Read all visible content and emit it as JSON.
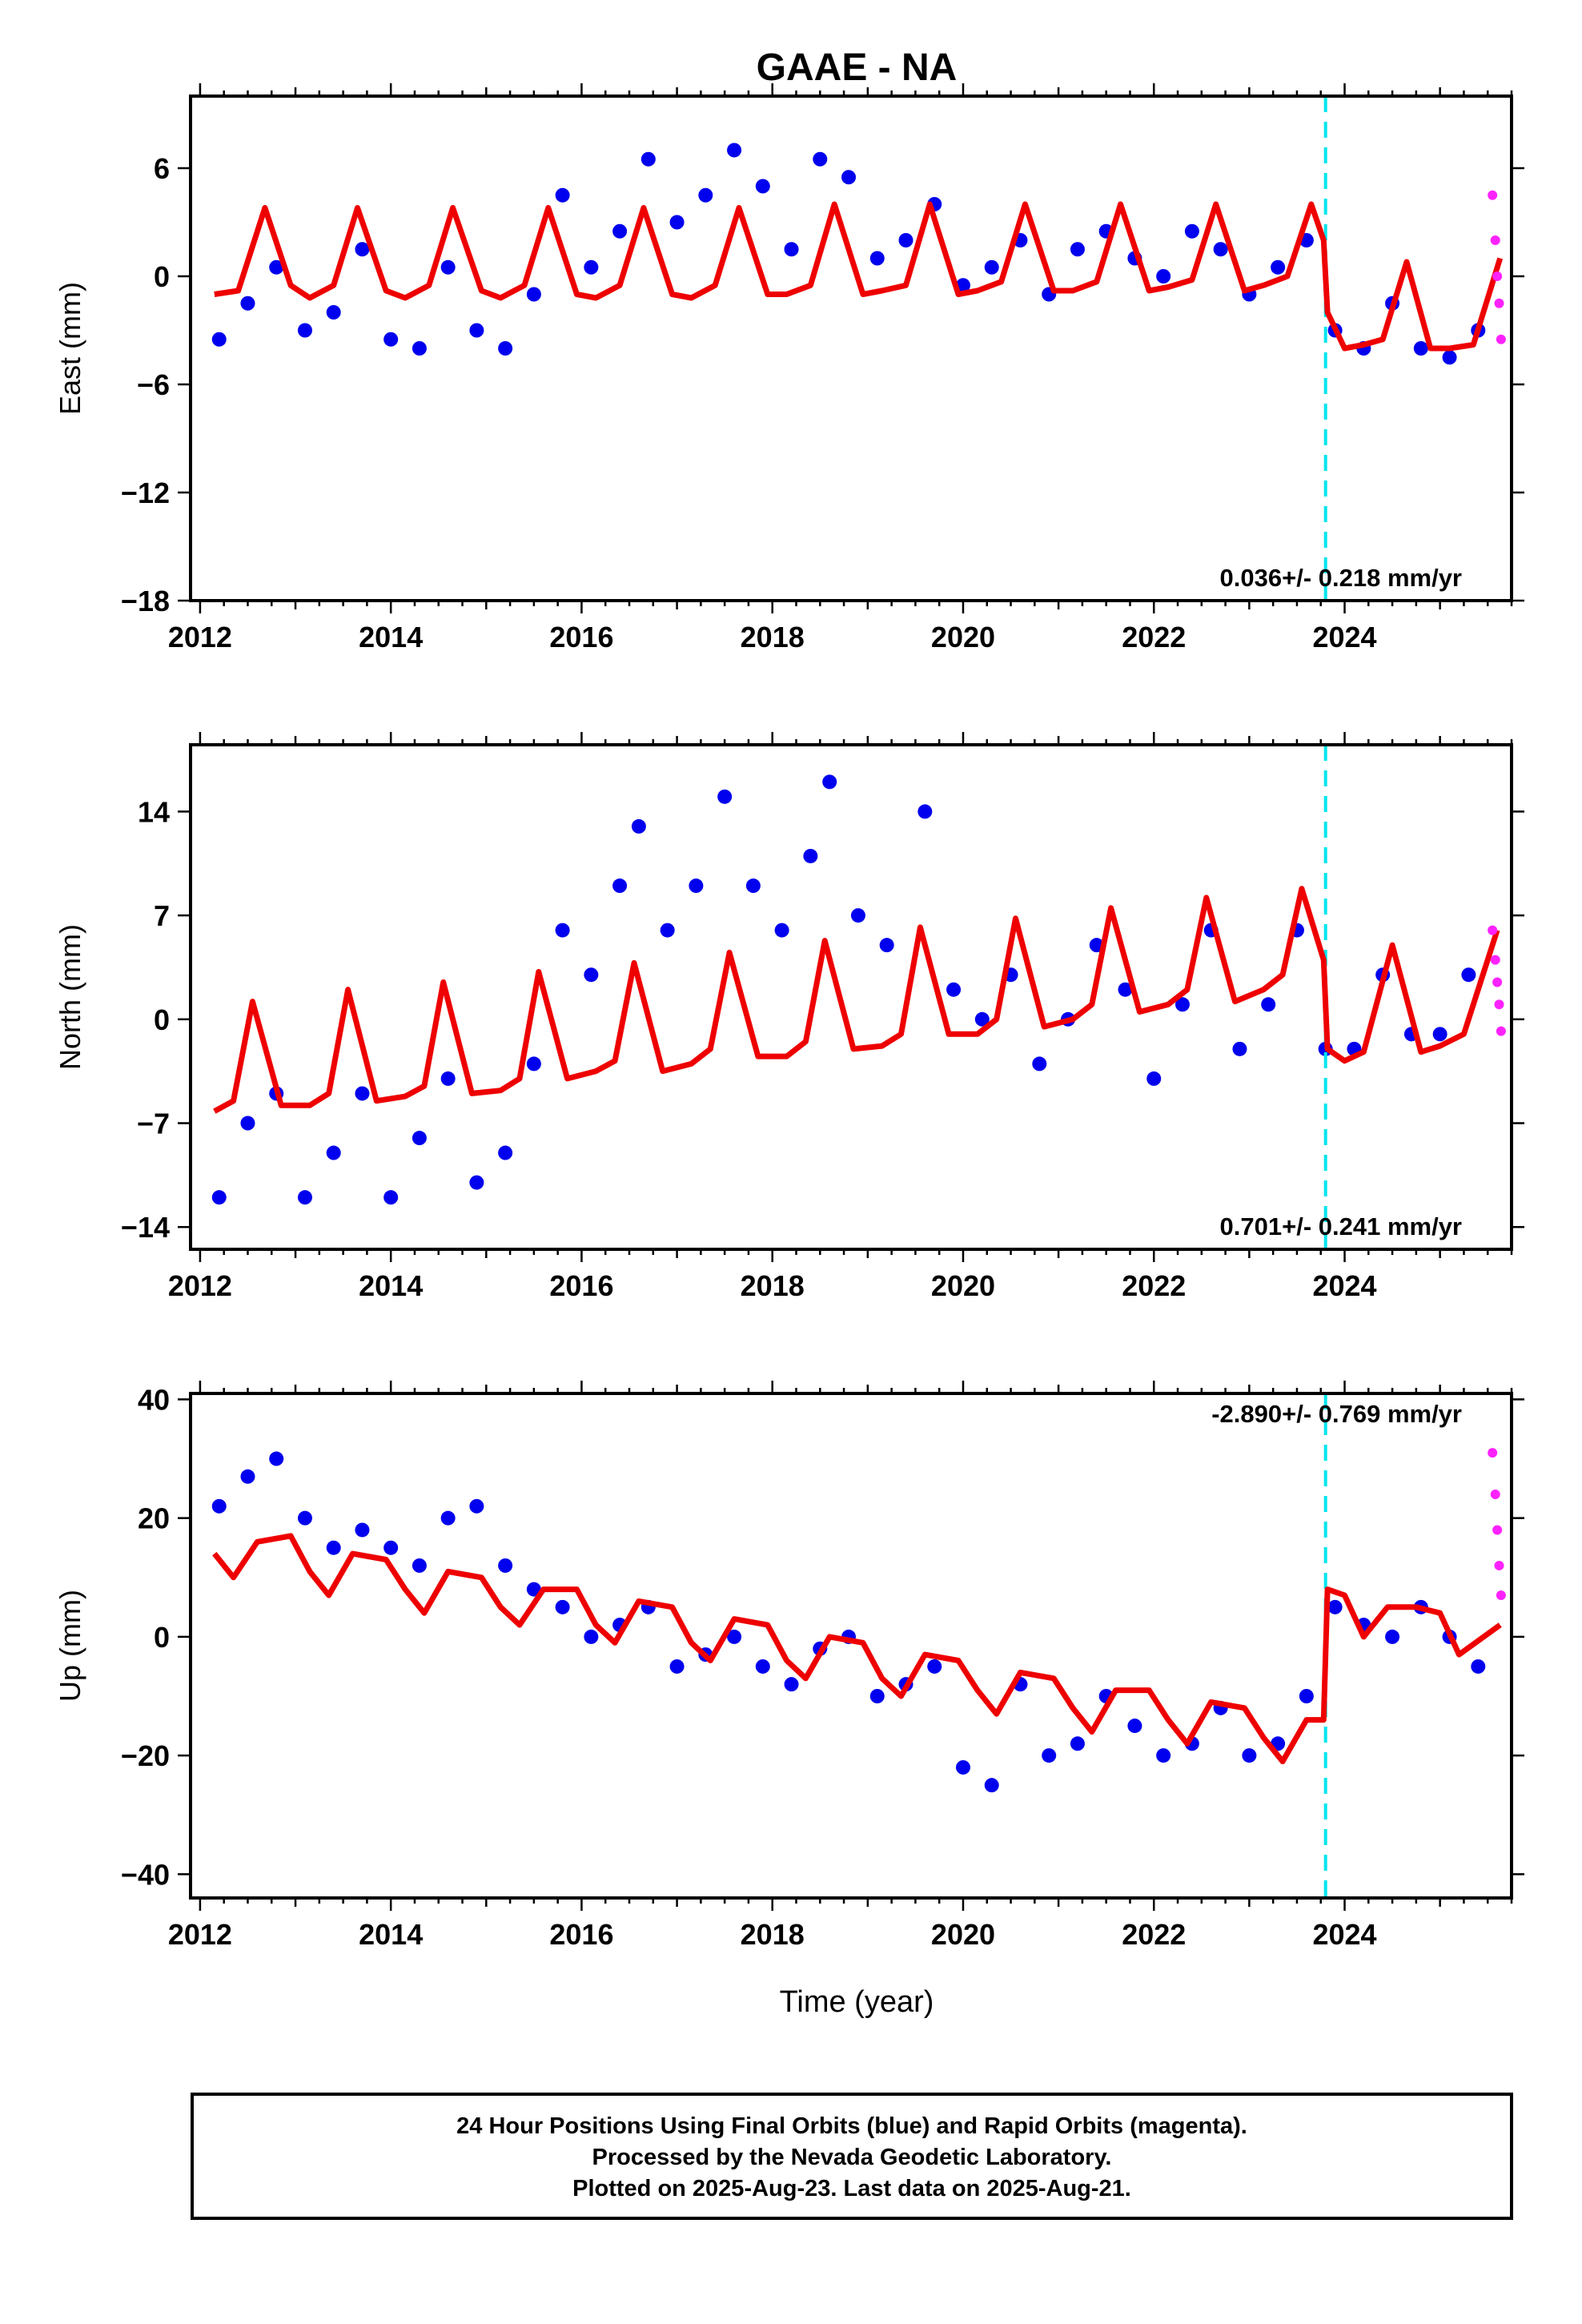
{
  "title": "GAAE - NA",
  "x_axis_label": "Time (year)",
  "colors": {
    "final_orbits": "#0000ee",
    "rapid_orbits": "#ff22ff",
    "model_fit": "#ee0000",
    "event_line": "#00e5ee"
  },
  "event_line_year": 2023.8,
  "footer": {
    "line1": "24 Hour Positions Using Final Orbits (blue) and Rapid Orbits (magenta).",
    "line2": "Processed by the Nevada Geodetic Laboratory.",
    "line3": "Plotted on 2025-Aug-23. Last data on 2025-Aug-21."
  },
  "chart_data": [
    {
      "type": "scatter",
      "component": "east",
      "ylabel": "East (mm)",
      "rate_label": "0.036+/- 0.218 mm/yr",
      "xlim": [
        2011.9,
        2025.75
      ],
      "ylim": [
        -18,
        10
      ],
      "x_ticks": [
        "2012",
        "2014",
        "2016",
        "2018",
        "2020",
        "2022",
        "2024"
      ],
      "y_ticks": [
        "6",
        "0",
        "−6",
        "−12",
        "−18"
      ],
      "y_tick_values": [
        6,
        0,
        -6,
        -12,
        -18
      ],
      "final_orbit_points": {
        "x": [
          2012.2,
          2012.5,
          2012.8,
          2013.1,
          2013.4,
          2013.7,
          2014.0,
          2014.3,
          2014.6,
          2014.9,
          2015.2,
          2015.5,
          2015.8,
          2016.1,
          2016.4,
          2016.7,
          2017.0,
          2017.3,
          2017.6,
          2017.9,
          2018.2,
          2018.5,
          2018.8,
          2019.1,
          2019.4,
          2019.7,
          2020.0,
          2020.3,
          2020.6,
          2020.9,
          2021.2,
          2021.5,
          2021.8,
          2022.1,
          2022.4,
          2022.7,
          2023.0,
          2023.3,
          2023.6,
          2023.9,
          2024.2,
          2024.5,
          2024.8,
          2025.1,
          2025.4
        ],
        "y": [
          -3.5,
          -1.5,
          0.5,
          -3.0,
          -2.0,
          1.5,
          -3.5,
          -4.0,
          0.5,
          -3.0,
          -4.0,
          -1.0,
          4.5,
          0.5,
          2.5,
          6.5,
          3.0,
          4.5,
          7.0,
          5.0,
          1.5,
          6.5,
          5.5,
          1.0,
          2.0,
          4.0,
          -0.5,
          0.5,
          2.0,
          -1.0,
          1.5,
          2.5,
          1.0,
          0.0,
          2.5,
          1.5,
          -1.0,
          0.5,
          2.0,
          -3.0,
          -4.0,
          -1.5,
          -4.0,
          -4.5,
          -3.0
        ]
      },
      "rapid_orbit_points": {
        "x": [
          2025.55,
          2025.58,
          2025.6,
          2025.62,
          2025.64
        ],
        "y": [
          4.5,
          2.0,
          0.0,
          -1.5,
          -3.5
        ]
      },
      "model_fit": {
        "x": [
          2012.15,
          2012.4,
          2012.68,
          2012.95,
          2013.15,
          2013.4,
          2013.65,
          2013.95,
          2014.15,
          2014.4,
          2014.65,
          2014.95,
          2015.15,
          2015.4,
          2015.65,
          2015.95,
          2016.15,
          2016.4,
          2016.65,
          2016.95,
          2017.15,
          2017.4,
          2017.65,
          2017.95,
          2018.15,
          2018.4,
          2018.65,
          2018.95,
          2019.15,
          2019.4,
          2019.65,
          2019.95,
          2020.15,
          2020.4,
          2020.65,
          2020.95,
          2021.15,
          2021.4,
          2021.65,
          2021.95,
          2022.15,
          2022.4,
          2022.65,
          2022.95,
          2023.15,
          2023.4,
          2023.65,
          2023.78,
          2023.82,
          2024.0,
          2024.2,
          2024.4,
          2024.65,
          2024.9,
          2025.1,
          2025.35,
          2025.63
        ],
        "y": [
          -1.0,
          -0.8,
          3.8,
          -0.5,
          -1.2,
          -0.5,
          3.8,
          -0.8,
          -1.2,
          -0.5,
          3.8,
          -0.8,
          -1.2,
          -0.5,
          3.8,
          -1.0,
          -1.2,
          -0.5,
          3.8,
          -1.0,
          -1.2,
          -0.5,
          3.8,
          -1.0,
          -1.0,
          -0.5,
          4.0,
          -1.0,
          -0.8,
          -0.5,
          4.0,
          -1.0,
          -0.8,
          -0.3,
          4.0,
          -0.8,
          -0.8,
          -0.3,
          4.0,
          -0.8,
          -0.6,
          -0.2,
          4.0,
          -0.8,
          -0.5,
          0.0,
          4.0,
          2.0,
          -2.0,
          -4.0,
          -3.8,
          -3.5,
          0.8,
          -4.0,
          -4.0,
          -3.8,
          1.0
        ]
      }
    },
    {
      "type": "scatter",
      "component": "north",
      "ylabel": "North (mm)",
      "rate_label": "0.701+/- 0.241 mm/yr",
      "xlim": [
        2011.9,
        2025.75
      ],
      "ylim": [
        -15.5,
        18.5
      ],
      "x_ticks": [
        "2012",
        "2014",
        "2016",
        "2018",
        "2020",
        "2022",
        "2024"
      ],
      "y_ticks": [
        "14",
        "7",
        "0",
        "−7",
        "−14"
      ],
      "y_tick_values": [
        14,
        7,
        0,
        -7,
        -14
      ],
      "final_orbit_points": {
        "x": [
          2012.2,
          2012.5,
          2012.8,
          2013.1,
          2013.4,
          2013.7,
          2014.0,
          2014.3,
          2014.6,
          2014.9,
          2015.2,
          2015.5,
          2015.8,
          2016.1,
          2016.4,
          2016.6,
          2016.9,
          2017.2,
          2017.5,
          2017.8,
          2018.1,
          2018.4,
          2018.6,
          2018.9,
          2019.2,
          2019.6,
          2019.9,
          2020.2,
          2020.5,
          2020.8,
          2021.1,
          2021.4,
          2021.7,
          2022.0,
          2022.3,
          2022.6,
          2022.9,
          2023.2,
          2023.5,
          2023.8,
          2024.1,
          2024.4,
          2024.7,
          2025.0,
          2025.3
        ],
        "y": [
          -12.0,
          -7.0,
          -5.0,
          -12.0,
          -9.0,
          -5.0,
          -12.0,
          -8.0,
          -4.0,
          -11.0,
          -9.0,
          -3.0,
          6.0,
          3.0,
          9.0,
          13.0,
          6.0,
          9.0,
          15.0,
          9.0,
          6.0,
          11.0,
          16.0,
          7.0,
          5.0,
          14.0,
          2.0,
          0.0,
          3.0,
          -3.0,
          0.0,
          5.0,
          2.0,
          -4.0,
          1.0,
          6.0,
          -2.0,
          1.0,
          6.0,
          -2.0,
          -2.0,
          3.0,
          -1.0,
          -1.0,
          3.0
        ]
      },
      "rapid_orbit_points": {
        "x": [
          2025.55,
          2025.58,
          2025.6,
          2025.62,
          2025.64
        ],
        "y": [
          6.0,
          4.0,
          2.5,
          1.0,
          -0.8
        ]
      },
      "model_fit": {
        "x": [
          2012.15,
          2012.35,
          2012.55,
          2012.85,
          2013.15,
          2013.35,
          2013.55,
          2013.85,
          2014.15,
          2014.35,
          2014.55,
          2014.85,
          2015.15,
          2015.35,
          2015.55,
          2015.85,
          2016.15,
          2016.35,
          2016.55,
          2016.85,
          2017.15,
          2017.35,
          2017.55,
          2017.85,
          2018.15,
          2018.35,
          2018.55,
          2018.85,
          2019.15,
          2019.35,
          2019.55,
          2019.85,
          2020.15,
          2020.35,
          2020.55,
          2020.85,
          2021.15,
          2021.35,
          2021.55,
          2021.85,
          2022.15,
          2022.35,
          2022.55,
          2022.85,
          2023.15,
          2023.35,
          2023.55,
          2023.78,
          2023.82,
          2024.0,
          2024.2,
          2024.5,
          2024.8,
          2025.0,
          2025.25,
          2025.6
        ],
        "y": [
          -6.2,
          -5.5,
          1.2,
          -5.8,
          -5.8,
          -5.0,
          2.0,
          -5.5,
          -5.2,
          -4.5,
          2.5,
          -5.0,
          -4.8,
          -4.0,
          3.2,
          -4.0,
          -3.5,
          -2.8,
          3.8,
          -3.5,
          -3.0,
          -2.0,
          4.5,
          -2.5,
          -2.5,
          -1.5,
          5.3,
          -2.0,
          -1.8,
          -1.0,
          6.2,
          -1.0,
          -1.0,
          0.0,
          6.8,
          -0.5,
          0.0,
          1.0,
          7.5,
          0.5,
          1.0,
          2.0,
          8.2,
          1.2,
          2.0,
          3.0,
          8.8,
          4.0,
          -2.0,
          -2.8,
          -2.2,
          5.0,
          -2.2,
          -1.8,
          -1.0,
          6.0
        ]
      }
    },
    {
      "type": "scatter",
      "component": "up",
      "ylabel": "Up (mm)",
      "rate_label": "-2.890+/- 0.769 mm/yr",
      "xlim": [
        2011.9,
        2025.75
      ],
      "ylim": [
        -44,
        41
      ],
      "x_ticks": [
        "2012",
        "2014",
        "2016",
        "2018",
        "2020",
        "2022",
        "2024"
      ],
      "y_ticks": [
        "40",
        "20",
        "0",
        "−20",
        "−40"
      ],
      "y_tick_values": [
        40,
        20,
        0,
        -20,
        -40
      ],
      "final_orbit_points": {
        "x": [
          2012.2,
          2012.5,
          2012.8,
          2013.1,
          2013.4,
          2013.7,
          2014.0,
          2014.3,
          2014.6,
          2014.9,
          2015.2,
          2015.5,
          2015.8,
          2016.1,
          2016.4,
          2016.7,
          2017.0,
          2017.3,
          2017.6,
          2017.9,
          2018.2,
          2018.5,
          2018.8,
          2019.1,
          2019.4,
          2019.7,
          2020.0,
          2020.3,
          2020.6,
          2020.9,
          2021.2,
          2021.5,
          2021.8,
          2022.1,
          2022.4,
          2022.7,
          2023.0,
          2023.3,
          2023.6,
          2023.9,
          2024.2,
          2024.5,
          2024.8,
          2025.1,
          2025.4
        ],
        "y": [
          22,
          27,
          30,
          20,
          15,
          18,
          15,
          12,
          20,
          22,
          12,
          8,
          5,
          0,
          2,
          5,
          -5,
          -3,
          0,
          -5,
          -8,
          -2,
          0,
          -10,
          -8,
          -5,
          -22,
          -25,
          -8,
          -20,
          -18,
          -10,
          -15,
          -20,
          -18,
          -12,
          -20,
          -18,
          -10,
          5,
          2,
          0,
          5,
          0,
          -5
        ]
      },
      "rapid_orbit_points": {
        "x": [
          2025.55,
          2025.58,
          2025.6,
          2025.62,
          2025.64
        ],
        "y": [
          31,
          24,
          18,
          12,
          7
        ]
      },
      "model_fit": {
        "x": [
          2012.15,
          2012.35,
          2012.6,
          2012.95,
          2013.15,
          2013.35,
          2013.6,
          2013.95,
          2014.15,
          2014.35,
          2014.6,
          2014.95,
          2015.15,
          2015.35,
          2015.6,
          2015.95,
          2016.15,
          2016.35,
          2016.6,
          2016.95,
          2017.15,
          2017.35,
          2017.6,
          2017.95,
          2018.15,
          2018.35,
          2018.6,
          2018.95,
          2019.15,
          2019.35,
          2019.6,
          2019.95,
          2020.15,
          2020.35,
          2020.6,
          2020.95,
          2021.15,
          2021.35,
          2021.6,
          2021.95,
          2022.15,
          2022.35,
          2022.6,
          2022.95,
          2023.15,
          2023.35,
          2023.6,
          2023.78,
          2023.82,
          2024.0,
          2024.2,
          2024.45,
          2024.75,
          2025.0,
          2025.2,
          2025.63
        ],
        "y": [
          14,
          10,
          16,
          17,
          11,
          7,
          14,
          13,
          8,
          4,
          11,
          10,
          5,
          2,
          8,
          8,
          2,
          -1,
          6,
          5,
          -1,
          -4,
          3,
          2,
          -4,
          -7,
          0,
          -1,
          -7,
          -10,
          -3,
          -4,
          -9,
          -13,
          -6,
          -7,
          -12,
          -16,
          -9,
          -9,
          -14,
          -18,
          -11,
          -12,
          -17,
          -21,
          -14,
          -14,
          8,
          7,
          0,
          5,
          5,
          4,
          -3,
          2
        ]
      }
    }
  ]
}
